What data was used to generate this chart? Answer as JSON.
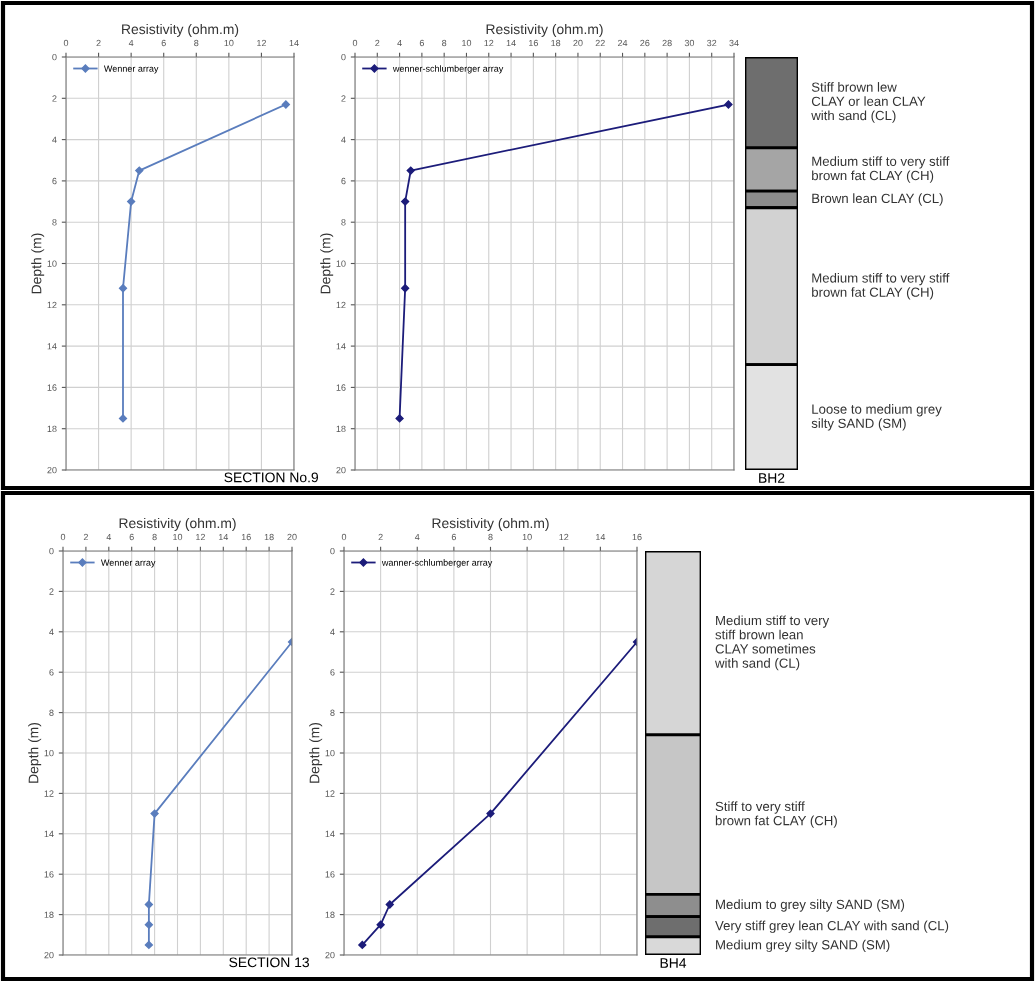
{
  "chart_data": [
    {
      "type": "line",
      "xlabel": "Resistivity (ohm.m)",
      "ylabel": "Depth (m)",
      "xlim": [
        0,
        14
      ],
      "xticks": [
        0,
        2,
        4,
        6,
        8,
        10,
        12,
        14
      ],
      "ylim": [
        20,
        0
      ],
      "yticks": [
        0,
        2,
        4,
        6,
        8,
        10,
        12,
        14,
        16,
        18,
        20
      ],
      "grid": true,
      "legend": "top left",
      "marker": "diamond",
      "line_style": "solid",
      "annotations": [
        "SECTION No.9"
      ],
      "series": [
        {
          "name": "Wenner array",
          "color": "#5a7dbd",
          "x": [
            13.5,
            4.5,
            4,
            3.5,
            3.5
          ],
          "values": [
            2.3,
            5.5,
            7,
            11.2,
            17.5
          ]
        }
      ]
    },
    {
      "type": "line",
      "xlabel": "Resistivity (ohm.m)",
      "ylabel": "Depth (m)",
      "xlim": [
        0,
        34
      ],
      "xticks": [
        0,
        2,
        4,
        6,
        8,
        10,
        12,
        14,
        16,
        18,
        20,
        22,
        24,
        26,
        28,
        30,
        32,
        34
      ],
      "ylim": [
        20,
        0
      ],
      "yticks": [
        0,
        2,
        4,
        6,
        8,
        10,
        12,
        14,
        16,
        18,
        20
      ],
      "grid": true,
      "legend": "top left",
      "marker": "diamond",
      "line_style": "solid",
      "series": [
        {
          "name": "wenner-schlumberger array",
          "color": "#1c1c7a",
          "x": [
            33.5,
            5,
            4.5,
            4.5,
            4
          ],
          "values": [
            2.3,
            5.5,
            7,
            11.2,
            17.5
          ]
        }
      ]
    },
    {
      "type": "bar",
      "stacked": true,
      "categories": [
        "BH2"
      ],
      "ylim": [
        20,
        0
      ],
      "tick_labels": "x",
      "series": [
        {
          "name": "Stiff brown lew\nCLAY or lean CLAY\nwith sand (CL)",
          "color": "#6e6e6e",
          "values": [
            4.4
          ]
        },
        {
          "name": "Medium stiff to very stiff\nbrown fat CLAY (CH)",
          "color": "#a5a5a5",
          "values": [
            2.1
          ]
        },
        {
          "name": "Brown lean CLAY (CL)",
          "color": "#8c8c8c",
          "values": [
            0.8
          ]
        },
        {
          "name": "Medium stiff to very stiff\nbrown fat CLAY (CH)",
          "color": "#d2d2d2",
          "values": [
            7.6
          ]
        },
        {
          "name": "Loose to medium grey\nsilty SAND (SM)",
          "color": "#e2e2e2",
          "values": [
            5.1
          ]
        }
      ]
    },
    {
      "type": "line",
      "xlabel": "Resistivity (ohm.m)",
      "ylabel": "Depth (m)",
      "xlim": [
        0,
        20
      ],
      "xticks": [
        0,
        2,
        4,
        6,
        8,
        10,
        12,
        14,
        16,
        18,
        20
      ],
      "ylim": [
        20,
        0
      ],
      "yticks": [
        0,
        2,
        4,
        6,
        8,
        10,
        12,
        14,
        16,
        18,
        20
      ],
      "grid": true,
      "legend": "top left",
      "marker": "diamond",
      "line_style": "solid",
      "annotations": [
        "SECTION 13"
      ],
      "series": [
        {
          "name": "Wenner array",
          "color": "#5a7dbd",
          "x": [
            20,
            8,
            7.5,
            7.5,
            7.5
          ],
          "values": [
            4.5,
            13,
            17.5,
            18.5,
            19.5
          ]
        }
      ]
    },
    {
      "type": "line",
      "xlabel": "Resistivity (ohm.m)",
      "ylabel": "Depth (m)",
      "xlim": [
        0,
        16
      ],
      "xticks": [
        0,
        2,
        4,
        6,
        8,
        10,
        12,
        14,
        16
      ],
      "ylim": [
        20,
        0
      ],
      "yticks": [
        0,
        2,
        4,
        6,
        8,
        10,
        12,
        14,
        16,
        18,
        20
      ],
      "grid": true,
      "legend": "top left",
      "marker": "diamond",
      "line_style": "solid",
      "series": [
        {
          "name": "wanner-schlumberger array",
          "color": "#1c1c7a",
          "x": [
            16,
            8,
            2.5,
            2,
            1
          ],
          "values": [
            4.5,
            13,
            17.5,
            18.5,
            19.5
          ]
        }
      ]
    },
    {
      "type": "bar",
      "stacked": true,
      "categories": [
        "BH4"
      ],
      "ylim": [
        20,
        0
      ],
      "tick_labels": "x",
      "series": [
        {
          "name": "Medium stiff to very\nstiff brown lean\nCLAY sometimes\nwith sand (CL)",
          "color": "#d6d6d6",
          "values": [
            9.1
          ]
        },
        {
          "name": "Stiff to very stiff\nbrown fat CLAY (CH)",
          "color": "#c6c6c6",
          "values": [
            7.9
          ]
        },
        {
          "name": "Medium to grey silty SAND (SM)",
          "color": "#8e8e8e",
          "values": [
            1.1
          ]
        },
        {
          "name": "Very stiff grey lean CLAY with sand (CL)",
          "color": "#6e6e6e",
          "values": [
            1.0
          ]
        },
        {
          "name": "Medium grey silty SAND (SM)",
          "color": "#d9d9d9",
          "values": [
            0.9
          ]
        }
      ]
    }
  ]
}
